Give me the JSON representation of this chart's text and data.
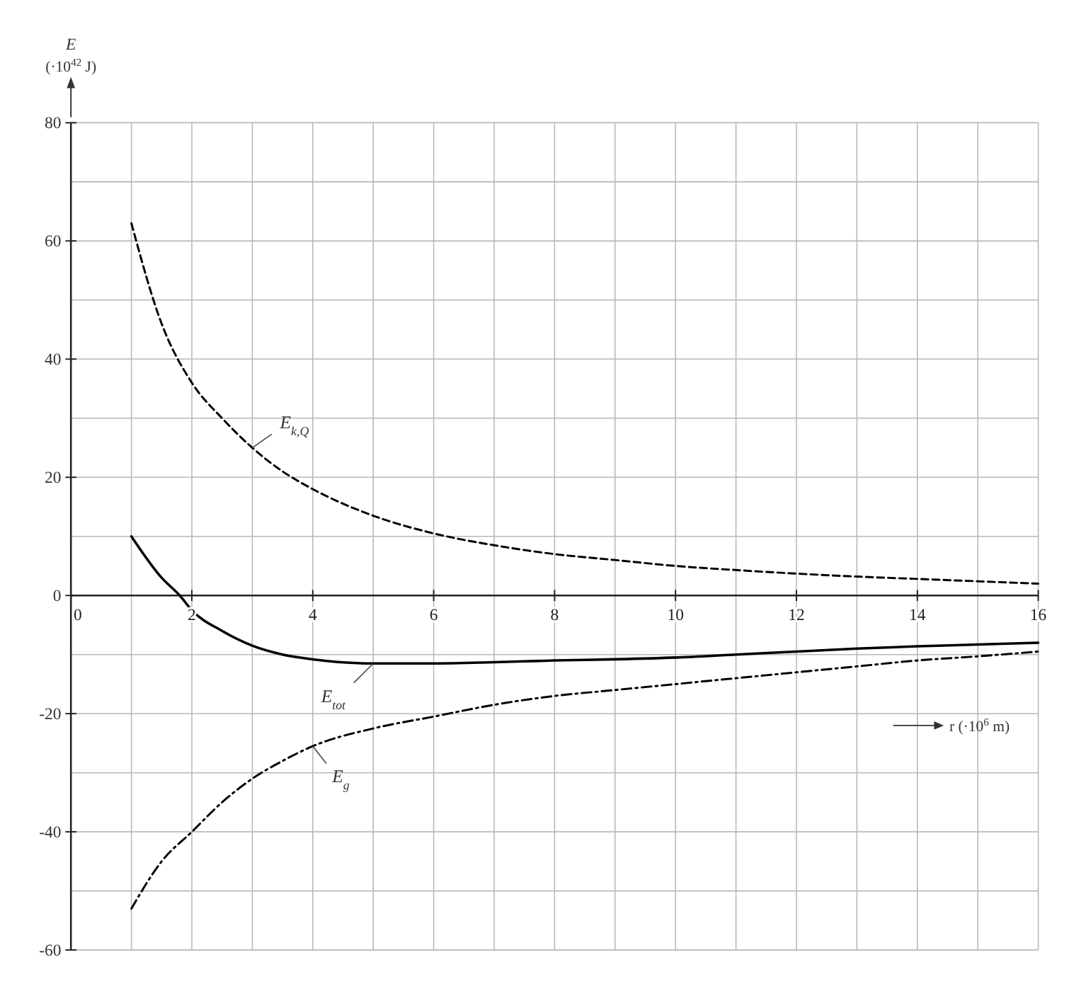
{
  "chart_data": {
    "type": "line",
    "xlabel": "r (·10$^{6}$ m)",
    "ylabel": "E (·10$^{42}$ J)",
    "xlim": [
      0,
      16
    ],
    "ylim": [
      -60,
      80
    ],
    "xticks": [
      0,
      {
        "value": 1,
        "label": null
      },
      2,
      {
        "value": 3,
        "label": null
      },
      4,
      {
        "value": 5,
        "label": null
      },
      6,
      {
        "value": 7,
        "label": null
      },
      8,
      {
        "value": 9,
        "label": null
      },
      10,
      {
        "value": 11,
        "label": null
      },
      12,
      {
        "value": 13,
        "label": null
      },
      14,
      {
        "value": 15,
        "label": null
      },
      16
    ],
    "yticks": [
      -60,
      {
        "value": -50,
        "label": null
      },
      -40,
      {
        "value": -30,
        "label": null
      },
      -20,
      {
        "value": -10,
        "label": null
      },
      0,
      {
        "value": 10,
        "label": null
      },
      20,
      {
        "value": 30,
        "label": null
      },
      40,
      {
        "value": 50,
        "label": null
      },
      60,
      {
        "value": 70,
        "label": null
      },
      80
    ],
    "grid": true,
    "marker": "none",
    "series": [
      {
        "name": "E$_{k,Q}$",
        "color": "#000000",
        "line_style": "dashed",
        "x": [
          1,
          1.5,
          2,
          2.5,
          3,
          3.5,
          4,
          5,
          6,
          7,
          8,
          9,
          10,
          11,
          12,
          13,
          14,
          15,
          16
        ],
        "values": [
          63,
          46,
          36,
          30,
          25,
          21,
          18,
          13.5,
          10.5,
          8.5,
          7,
          6,
          5,
          4.3,
          3.7,
          3.2,
          2.8,
          2.4,
          2
        ]
      },
      {
        "name": "E$_{tot}$",
        "color": "#000000",
        "line_style": "solid",
        "x": [
          1,
          1.5,
          1.8,
          2,
          2.5,
          3,
          3.5,
          4,
          5,
          6,
          7,
          8,
          9,
          10,
          11,
          12,
          13,
          14,
          15,
          16
        ],
        "values": [
          10,
          3,
          0,
          -2.5,
          -6,
          -8.5,
          -10,
          -10.8,
          -11.5,
          -11.5,
          -11.3,
          -11,
          -10.8,
          -10.5,
          -10,
          -9.5,
          -9,
          -8.6,
          -8.3,
          -8
        ]
      },
      {
        "name": "E$_{g}$",
        "color": "#000000",
        "line_style": "dotted",
        "x": [
          1,
          1.5,
          2,
          2.5,
          3,
          3.5,
          4,
          5,
          6,
          7,
          8,
          9,
          10,
          11,
          12,
          13,
          14,
          15,
          16
        ],
        "values": [
          -53,
          -45,
          -40,
          -35,
          -31,
          -28,
          -25.5,
          -22.5,
          -20.5,
          -18.5,
          -17,
          -16,
          -15,
          -14,
          -13,
          -12,
          -11,
          -10.3,
          -9.5
        ]
      }
    ]
  }
}
